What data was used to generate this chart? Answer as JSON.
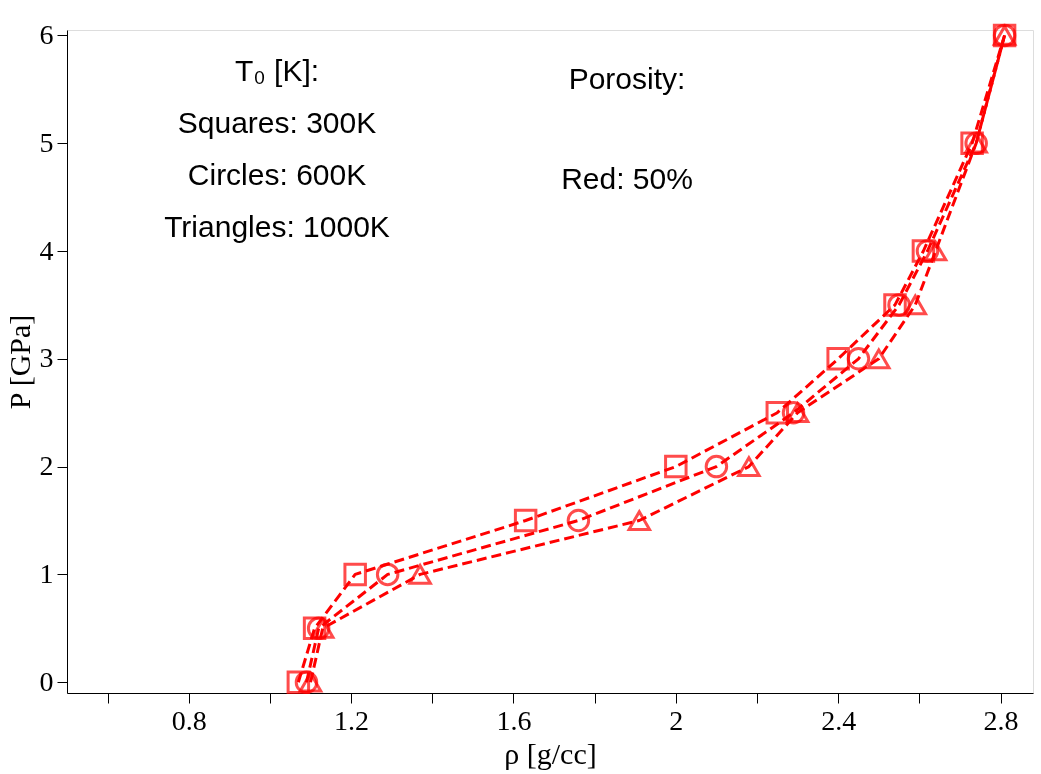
{
  "chart_data": {
    "type": "line",
    "xlabel": "ρ [g/cc]",
    "ylabel": "P [GPa]",
    "xlim": [
      0.5,
      2.88
    ],
    "ylim": [
      -0.1,
      6.05
    ],
    "xticks": [
      {
        "value": 0.6,
        "label": null
      },
      0.8,
      {
        "value": 1.0,
        "label": null
      },
      1.2,
      {
        "value": 1.4,
        "label": null
      },
      1.6,
      {
        "value": 1.8,
        "label": null
      },
      2,
      {
        "value": 2.2,
        "label": null
      },
      2.4,
      {
        "value": 2.6,
        "label": null
      },
      2.8
    ],
    "yticks": [
      0,
      1,
      2,
      3,
      4,
      5,
      6
    ],
    "grid": false,
    "legend": false,
    "line_style": "dashed",
    "series": [
      {
        "color": "#ff0000",
        "marker": "square",
        "x": [
          1.07,
          1.11,
          1.21,
          1.63,
          2.0,
          2.25,
          2.4,
          2.54,
          2.61,
          2.73,
          2.81
        ],
        "values": [
          0,
          0.5,
          1,
          1.5,
          2,
          2.5,
          3,
          3.5,
          4,
          5,
          6
        ]
      },
      {
        "color": "#ff0000",
        "marker": "circle",
        "x": [
          1.09,
          1.12,
          1.29,
          1.76,
          2.1,
          2.29,
          2.45,
          2.55,
          2.62,
          2.74,
          2.81
        ],
        "values": [
          0,
          0.5,
          1,
          1.5,
          2,
          2.5,
          3,
          3.5,
          4,
          5,
          6
        ]
      },
      {
        "color": "#ff0000",
        "marker": "triangle",
        "x": [
          1.1,
          1.13,
          1.37,
          1.91,
          2.18,
          2.3,
          2.5,
          2.59,
          2.64,
          2.74,
          2.81
        ],
        "values": [
          0,
          0.5,
          1,
          1.5,
          2,
          2.5,
          3,
          3.5,
          4,
          5,
          6
        ]
      }
    ],
    "annotations": [
      "T₀ [K]:",
      "Squares: 300K",
      "Circles: 600K",
      "Triangles: 1000K",
      "Porosity:",
      "Red: 50%"
    ]
  }
}
